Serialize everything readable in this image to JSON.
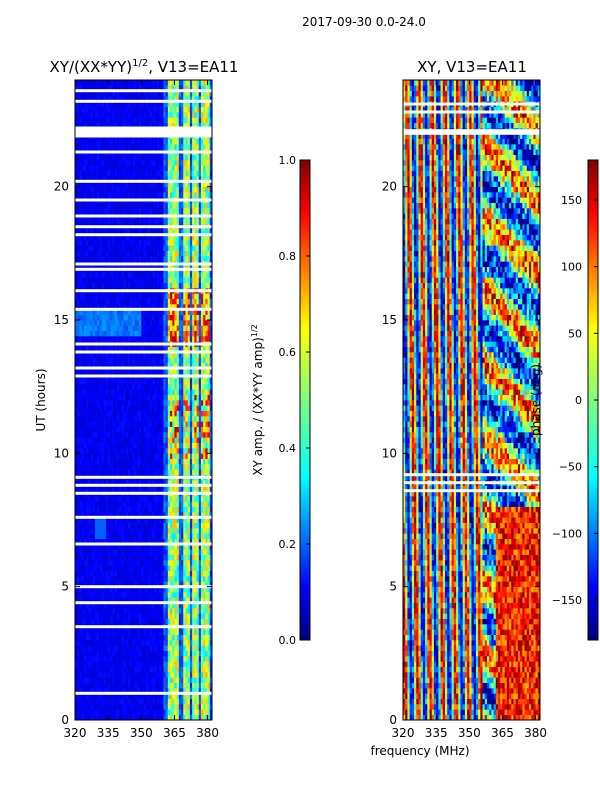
{
  "suptitle": "2017-09-30 0.0-24.0",
  "shared_xlabel": "frequency (MHz)",
  "chart_data": [
    {
      "type": "heatmap",
      "title": "XY/(XX*YY)",
      "title_sup": "1/2",
      "title_suffix": ", V13=EA11",
      "xlabel": "",
      "ylabel": "UT (hours)",
      "xlim": [
        320,
        382
      ],
      "ylim": [
        0,
        24
      ],
      "xticks": [
        320,
        335,
        350,
        365,
        380
      ],
      "yticks": [
        0,
        5,
        10,
        15,
        20
      ],
      "colorbar": {
        "label": "XY amp. / (XX*YY amp)",
        "label_sup": "1/2",
        "range": [
          0.0,
          1.0
        ],
        "ticks": [
          0.0,
          0.2,
          0.4,
          0.6,
          0.8,
          1.0
        ],
        "tick_labels": [
          "0.0",
          "0.2",
          "0.4",
          "0.6",
          "0.8",
          "1.0"
        ]
      },
      "gaps_ut": [
        1.0,
        3.5,
        4.4,
        5.0,
        6.6,
        7.6,
        8.5,
        8.8,
        9.1,
        12.9,
        13.2,
        13.8,
        14.1,
        15.4,
        16.1,
        16.9,
        17.1,
        18.2,
        18.5,
        18.9,
        19.5,
        20.2,
        21.3,
        21.9,
        22.05,
        22.2,
        23.2,
        23.6
      ],
      "bright_bands_mhz": [
        [
          362,
          367
        ],
        [
          369,
          372
        ],
        [
          373,
          376
        ],
        [
          377,
          381
        ]
      ],
      "description": "Normalized XY amplitude: near 0.1 below 362 MHz, 0.4-1.0 in bands above 362 MHz"
    },
    {
      "type": "heatmap",
      "title": "XY, V13=EA11",
      "xlabel": "frequency (MHz)",
      "ylabel": "phase (deg)",
      "xlim": [
        320,
        382
      ],
      "ylim": [
        0,
        24
      ],
      "xticks": [
        320,
        335,
        350,
        365,
        380
      ],
      "yticks": [
        0,
        5,
        10,
        15,
        20
      ],
      "colorbar": {
        "label": "phase (deg)",
        "range": [
          -180,
          180
        ],
        "ticks": [
          -150,
          -100,
          -50,
          0,
          50,
          100,
          150
        ],
        "tick_labels": [
          "−150",
          "−100",
          "−50",
          "0",
          "50",
          "100",
          "150"
        ]
      },
      "gaps_ut": [
        8.6,
        8.9,
        9.2,
        22.0,
        22.1,
        22.8,
        23.1
      ],
      "description": "XY phase in degrees, vertical stripes below 355 MHz, irregular above"
    }
  ],
  "colors": {
    "jet": [
      "#00007f",
      "#0000ff",
      "#007fff",
      "#00ffff",
      "#7fff7f",
      "#ffff00",
      "#ff7f00",
      "#ff0000",
      "#7f0000"
    ]
  }
}
